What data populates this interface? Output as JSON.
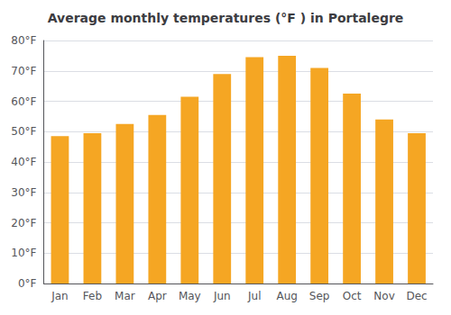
{
  "chart_data": {
    "type": "bar",
    "title": "Average monthly temperatures (°F ) in Portalegre",
    "categories": [
      "Jan",
      "Feb",
      "Mar",
      "Apr",
      "May",
      "Jun",
      "Jul",
      "Aug",
      "Sep",
      "Oct",
      "Nov",
      "Dec"
    ],
    "values": [
      48.5,
      49.5,
      52.5,
      55.5,
      61.5,
      69,
      74.5,
      75,
      71,
      62.5,
      54,
      49.5
    ],
    "color": "#F5A623",
    "ylim": [
      0,
      80
    ],
    "yticks": [
      {
        "value": 0,
        "label": "0°F"
      },
      {
        "value": 10,
        "label": "10°F"
      },
      {
        "value": 20,
        "label": "20°F"
      },
      {
        "value": 30,
        "label": "30°F"
      },
      {
        "value": 40,
        "label": "40°F"
      },
      {
        "value": 50,
        "label": "50°F"
      },
      {
        "value": 60,
        "label": "60°F"
      },
      {
        "value": 70,
        "label": "70°F"
      },
      {
        "value": 80,
        "label": "80°F"
      }
    ],
    "grid": true
  }
}
